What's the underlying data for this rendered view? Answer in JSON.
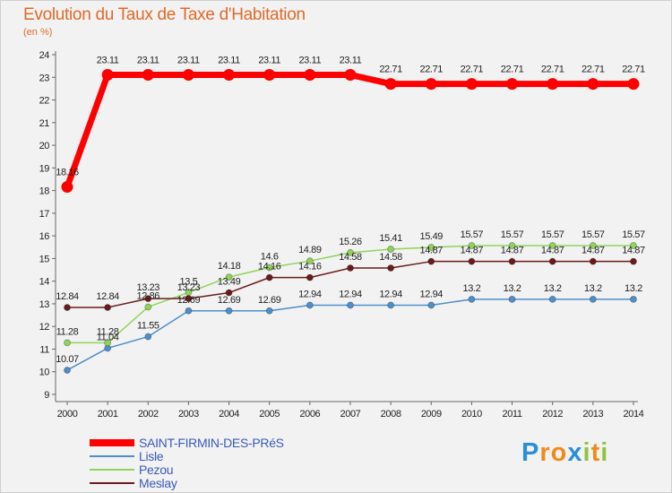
{
  "chart_data": {
    "type": "line",
    "title": "Evolution du Taux de Taxe d'Habitation",
    "subtitle": "(en %)",
    "xlabel": "",
    "ylabel": "",
    "x": [
      "2000",
      "2001",
      "2002",
      "2003",
      "2004",
      "2005",
      "2006",
      "2007",
      "2008",
      "2009",
      "2010",
      "2011",
      "2012",
      "2013",
      "2014"
    ],
    "ylim": [
      9,
      24
    ],
    "yticks": [
      9,
      10,
      11,
      12,
      13,
      14,
      15,
      16,
      17,
      18,
      19,
      20,
      21,
      22,
      23,
      24
    ],
    "grid": false,
    "legend": "bottom-left",
    "series": [
      {
        "name": "SAINT-FIRMIN-DES-PRéS",
        "color": "#ff0000",
        "values": [
          18.16,
          23.11,
          23.11,
          23.11,
          23.11,
          23.11,
          23.11,
          23.11,
          22.71,
          22.71,
          22.71,
          22.71,
          22.71,
          22.71,
          22.71
        ],
        "labels": [
          "18.16",
          "23.11",
          "23.11",
          "23.11",
          "23.11",
          "23.11",
          "23.11",
          "23.11",
          "22.71",
          "22.71",
          "22.71",
          "22.71",
          "22.71",
          "22.71",
          "22.71"
        ]
      },
      {
        "name": "Lisle",
        "color": "#4e8fc9",
        "values": [
          10.07,
          11.04,
          11.55,
          12.69,
          12.69,
          12.69,
          12.94,
          12.94,
          12.94,
          12.94,
          13.2,
          13.2,
          13.2,
          13.2,
          13.2
        ],
        "labels": [
          "10.07",
          "11.04",
          "11.55",
          "12.69",
          "12.69",
          "12.69",
          "12.94",
          "12.94",
          "12.94",
          "12.94",
          "13.2",
          "13.2",
          "13.2",
          "13.2",
          "13.2"
        ]
      },
      {
        "name": "Pezou",
        "color": "#8fd45a",
        "values": [
          11.28,
          11.28,
          12.86,
          13.5,
          14.18,
          14.6,
          14.89,
          15.26,
          15.41,
          15.49,
          15.57,
          15.57,
          15.57,
          15.57,
          15.57
        ],
        "labels": [
          "11.28",
          "11.28",
          "12.86",
          "13.5",
          "14.18",
          "14.6",
          "14.89",
          "15.26",
          "15.41",
          "15.49",
          "15.57",
          "15.57",
          "15.57",
          "15.57",
          "15.57"
        ]
      },
      {
        "name": "Meslay",
        "color": "#6b1b1b",
        "values": [
          12.84,
          12.84,
          13.23,
          13.23,
          13.49,
          14.16,
          14.16,
          14.58,
          14.58,
          14.87,
          14.87,
          14.87,
          14.87,
          14.87,
          14.87
        ],
        "labels": [
          "12.84",
          "12.84",
          "13.23",
          "13.23",
          "13.49",
          "14.16",
          "14.16",
          "14.58",
          "14.58",
          "14.87",
          "14.87",
          "14.87",
          "14.87",
          "14.87",
          "14.87"
        ]
      }
    ]
  },
  "branding": {
    "letters": [
      "P",
      "r",
      "o",
      "x",
      "i",
      "t",
      "i"
    ],
    "colors": [
      "#2a8fd6",
      "#f08a1c",
      "#f08a1c",
      "#2a8fd6",
      "#8cc63f",
      "#f08a1c",
      "#8cc63f"
    ]
  }
}
